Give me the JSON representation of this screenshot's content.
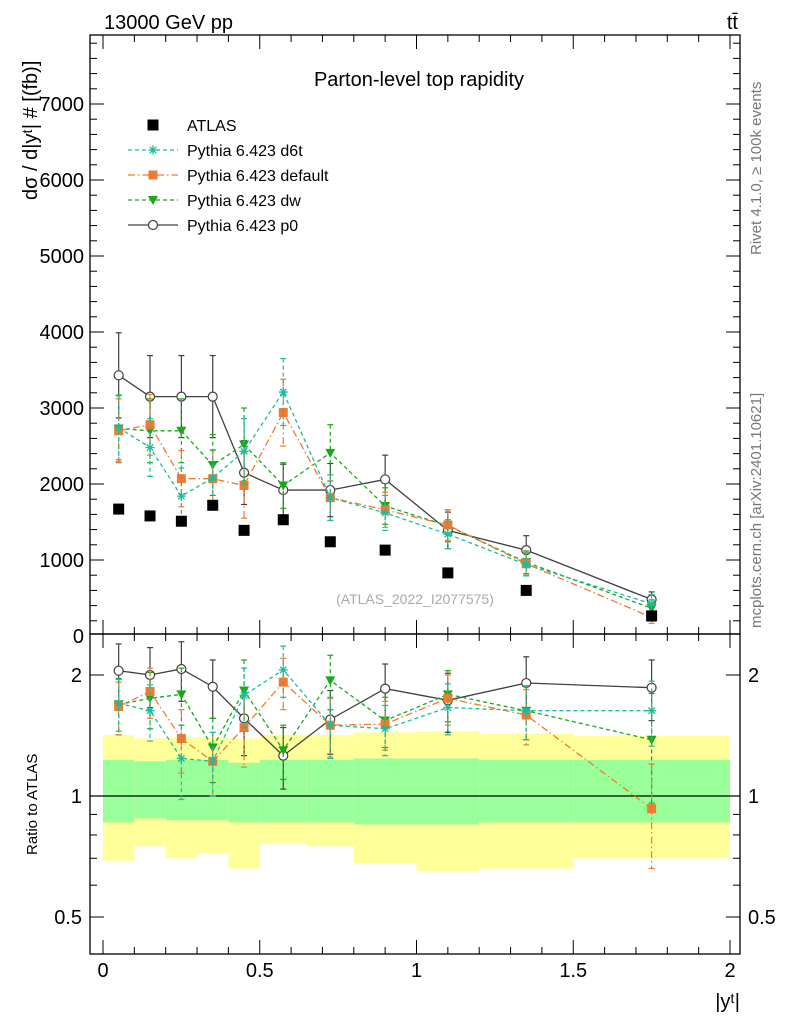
{
  "header": {
    "beam_label": "13000 GeV pp",
    "process_label": "tt̄"
  },
  "side_labels": {
    "rivet": "Rivet 4.1.0, ≥ 100k events",
    "mcplots": "mcplots.cern.ch [arXiv:2401.10621]"
  },
  "colors": {
    "atlas": "#000000",
    "d6t": "#1dbc9c",
    "default": "#f07a30",
    "dw": "#18a818",
    "p0": "#404040",
    "band_inner": "#99ff99",
    "band_outer": "#ffff99"
  },
  "chart_data": [
    {
      "type": "scatter",
      "title": "Parton-level top rapidity",
      "annotation": "(ATLAS_2022_I2077575)",
      "ylabel": "dσ / d|yᵗ| # [(fb)]",
      "xlabel": "|yᵗ|",
      "xlim": [
        -0.02,
        2.02
      ],
      "ylim": [
        0,
        7900
      ],
      "y_ticks": [
        0,
        1000,
        2000,
        3000,
        4000,
        5000,
        6000,
        7000
      ],
      "y_tick_labels": [
        "0",
        "1000",
        "2000",
        "3000",
        "4000",
        "5000",
        "6000",
        "7000"
      ],
      "legend_position": "top-left",
      "x": [
        0.05,
        0.15,
        0.25,
        0.35,
        0.45,
        0.575,
        0.725,
        0.9,
        1.1,
        1.35,
        1.75
      ],
      "series": [
        {
          "key": "atlas",
          "name": "ATLAS",
          "marker": "square",
          "dash": "none",
          "values": [
            1670,
            1580,
            1510,
            1720,
            1390,
            1530,
            1240,
            1130,
            830,
            600,
            265
          ]
        },
        {
          "key": "d6t",
          "name": "Pythia 6.423 d6t",
          "marker": "star",
          "dash": "4,3",
          "values": [
            2740,
            2480,
            1840,
            2080,
            2430,
            3210,
            1820,
            1620,
            1340,
            940,
            425
          ],
          "errors": [
            420,
            380,
            370,
            370,
            430,
            440,
            300,
            230,
            190,
            150,
            120
          ]
        },
        {
          "key": "default",
          "name": "Pythia 6.423 default",
          "marker": "square-small",
          "dash": "7,3,1.5,3",
          "values": [
            2700,
            2780,
            2070,
            2070,
            1980,
            2940,
            1820,
            1660,
            1460,
            950,
            245
          ],
          "errors": [
            420,
            400,
            370,
            370,
            430,
            440,
            300,
            230,
            200,
            150,
            80
          ]
        },
        {
          "key": "dw",
          "name": "Pythia 6.423 dw",
          "marker": "triangle-down",
          "dash": "4,3",
          "values": [
            2730,
            2700,
            2700,
            2250,
            2520,
            1980,
            2410,
            1710,
            1450,
            970,
            365
          ],
          "errors": [
            440,
            420,
            420,
            400,
            480,
            300,
            370,
            240,
            210,
            150,
            110
          ]
        },
        {
          "key": "p0",
          "name": "Pythia 6.423 p0",
          "marker": "circle-open",
          "dash": "none",
          "values": [
            3430,
            3150,
            3150,
            3150,
            2150,
            1920,
            1920,
            2060,
            1390,
            1130,
            480
          ],
          "errors": [
            560,
            540,
            540,
            540,
            420,
            340,
            350,
            320,
            240,
            190,
            100
          ]
        }
      ]
    },
    {
      "type": "scatter",
      "ylabel": "Ratio to ATLAS",
      "xlabel": "|yᵗ|",
      "y_scale": "log",
      "xlim": [
        -0.02,
        2.02
      ],
      "ylim": [
        0.41,
        2.4
      ],
      "x_ticks": [
        0,
        0.5,
        1,
        1.5,
        2
      ],
      "x_tick_labels": [
        "0",
        "0.5",
        "1",
        "1.5",
        "2"
      ],
      "y_ticks": [
        0.5,
        1,
        2
      ],
      "y_tick_labels": [
        "0.5",
        "1",
        "2"
      ],
      "bin_edges": [
        0.0,
        0.1,
        0.2,
        0.3,
        0.4,
        0.5,
        0.65,
        0.8,
        1.0,
        1.2,
        1.5,
        2.0
      ],
      "band_inner": {
        "upper": [
          1.23,
          1.22,
          1.23,
          1.23,
          1.21,
          1.23,
          1.23,
          1.24,
          1.24,
          1.23,
          1.23
        ],
        "lower": [
          0.86,
          0.88,
          0.87,
          0.87,
          0.86,
          0.86,
          0.86,
          0.85,
          0.85,
          0.86,
          0.86
        ]
      },
      "band_outer": {
        "upper": [
          1.42,
          1.39,
          1.4,
          1.4,
          1.39,
          1.42,
          1.42,
          1.44,
          1.45,
          1.43,
          1.41
        ],
        "lower": [
          0.69,
          0.75,
          0.7,
          0.72,
          0.66,
          0.76,
          0.75,
          0.68,
          0.65,
          0.66,
          0.7
        ]
      },
      "series": [
        {
          "key": "d6t",
          "values": [
            1.7,
            1.63,
            1.24,
            1.22,
            1.78,
            2.06,
            1.5,
            1.47,
            1.66,
            1.63,
            1.63
          ],
          "errors": [
            0.25,
            0.26,
            0.26,
            0.22,
            0.3,
            0.3,
            0.26,
            0.21,
            0.24,
            0.25,
            0.3
          ]
        },
        {
          "key": "default",
          "values": [
            1.67,
            1.82,
            1.39,
            1.22,
            1.48,
            1.92,
            1.5,
            1.51,
            1.75,
            1.59,
            0.93
          ],
          "errors": [
            0.25,
            0.26,
            0.25,
            0.22,
            0.3,
            0.28,
            0.25,
            0.21,
            0.25,
            0.25,
            0.27
          ]
        },
        {
          "key": "dw",
          "values": [
            1.69,
            1.75,
            1.79,
            1.32,
            1.83,
            1.3,
            1.94,
            1.54,
            1.79,
            1.63,
            1.38
          ],
          "errors": [
            0.27,
            0.28,
            0.29,
            0.24,
            0.35,
            0.2,
            0.3,
            0.22,
            0.26,
            0.25,
            0.42
          ]
        },
        {
          "key": "p0",
          "values": [
            2.05,
            2.0,
            2.07,
            1.87,
            1.56,
            1.26,
            1.55,
            1.85,
            1.73,
            1.91,
            1.86
          ],
          "errors": [
            0.34,
            0.34,
            0.35,
            0.31,
            0.3,
            0.22,
            0.28,
            0.28,
            0.29,
            0.31,
            0.32
          ]
        }
      ]
    }
  ]
}
